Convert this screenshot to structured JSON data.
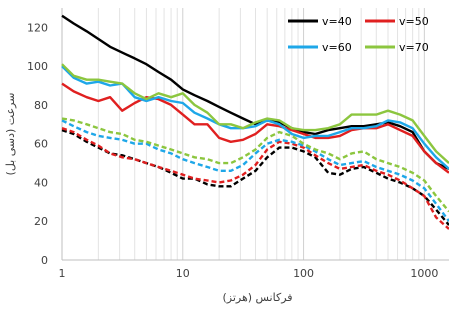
{
  "chart_data": {
    "type": "line",
    "xlabel": "فرکانس (هرتز)",
    "ylabel": "سرعت (دسی بل)",
    "x_scale": "log",
    "xlim": [
      1,
      1600
    ],
    "ylim": [
      0,
      130
    ],
    "x_ticks": [
      1,
      10,
      100,
      1000
    ],
    "x_tick_labels": [
      "1",
      "10",
      "100",
      "1000"
    ],
    "y_ticks": [
      0,
      20,
      40,
      60,
      80,
      100,
      120
    ],
    "y_tick_labels": [
      "0",
      "20",
      "40",
      "60",
      "80",
      "100",
      "120"
    ],
    "grid": "vertical minor lines on log x-axis",
    "legend": {
      "placement": "top-right"
    },
    "series": [
      {
        "name": "v=40",
        "color": "#000000",
        "style": "solid",
        "points": [
          [
            1,
            126
          ],
          [
            1.25,
            122
          ],
          [
            1.6,
            118
          ],
          [
            2,
            114
          ],
          [
            2.5,
            110
          ],
          [
            3.15,
            107
          ],
          [
            4,
            104
          ],
          [
            5,
            101
          ],
          [
            6.3,
            97
          ],
          [
            8,
            93
          ],
          [
            10,
            88
          ],
          [
            12.5,
            85
          ],
          [
            16,
            82
          ],
          [
            20,
            79
          ],
          [
            25,
            76
          ],
          [
            31.5,
            73
          ],
          [
            40,
            70
          ],
          [
            50,
            72
          ],
          [
            63,
            71
          ],
          [
            80,
            68
          ],
          [
            100,
            66
          ],
          [
            125,
            65
          ],
          [
            160,
            67
          ],
          [
            200,
            68
          ],
          [
            250,
            69
          ],
          [
            315,
            69
          ],
          [
            400,
            70
          ],
          [
            500,
            71
          ],
          [
            630,
            69
          ],
          [
            800,
            66
          ],
          [
            1000,
            56
          ],
          [
            1250,
            50
          ],
          [
            1600,
            47
          ]
        ]
      },
      {
        "name": "v=50",
        "color": "#e02020",
        "style": "solid",
        "points": [
          [
            1,
            91
          ],
          [
            1.25,
            87
          ],
          [
            1.6,
            84
          ],
          [
            2,
            82
          ],
          [
            2.5,
            84
          ],
          [
            3.15,
            77
          ],
          [
            4,
            81
          ],
          [
            5,
            84
          ],
          [
            6.3,
            83
          ],
          [
            8,
            80
          ],
          [
            10,
            75
          ],
          [
            12.5,
            70
          ],
          [
            16,
            70
          ],
          [
            20,
            63
          ],
          [
            25,
            61
          ],
          [
            31.5,
            62
          ],
          [
            40,
            65
          ],
          [
            50,
            70
          ],
          [
            63,
            69
          ],
          [
            80,
            67
          ],
          [
            100,
            65
          ],
          [
            125,
            63
          ],
          [
            160,
            63
          ],
          [
            200,
            64
          ],
          [
            250,
            67
          ],
          [
            315,
            68
          ],
          [
            400,
            68
          ],
          [
            500,
            70
          ],
          [
            630,
            67
          ],
          [
            800,
            64
          ],
          [
            1000,
            56
          ],
          [
            1250,
            50
          ],
          [
            1600,
            45
          ]
        ]
      },
      {
        "name": "v=60",
        "color": "#1ea7e8",
        "style": "solid",
        "points": [
          [
            1,
            100
          ],
          [
            1.25,
            94
          ],
          [
            1.6,
            91
          ],
          [
            2,
            92
          ],
          [
            2.5,
            90
          ],
          [
            3.15,
            91
          ],
          [
            4,
            84
          ],
          [
            5,
            82
          ],
          [
            6.3,
            84
          ],
          [
            8,
            82
          ],
          [
            10,
            81
          ],
          [
            12.5,
            76
          ],
          [
            16,
            73
          ],
          [
            20,
            70
          ],
          [
            25,
            68
          ],
          [
            31.5,
            68
          ],
          [
            40,
            69
          ],
          [
            50,
            72
          ],
          [
            63,
            70
          ],
          [
            80,
            65
          ],
          [
            100,
            63
          ],
          [
            125,
            64
          ],
          [
            160,
            64
          ],
          [
            200,
            66
          ],
          [
            250,
            68
          ],
          [
            315,
            68
          ],
          [
            400,
            69
          ],
          [
            500,
            72
          ],
          [
            630,
            71
          ],
          [
            800,
            68
          ],
          [
            1000,
            60
          ],
          [
            1250,
            53
          ],
          [
            1600,
            47
          ]
        ]
      },
      {
        "name": "v=70",
        "color": "#8cc63f",
        "style": "solid",
        "points": [
          [
            1,
            101
          ],
          [
            1.25,
            95
          ],
          [
            1.6,
            93
          ],
          [
            2,
            93
          ],
          [
            2.5,
            92
          ],
          [
            3.15,
            91
          ],
          [
            4,
            86
          ],
          [
            5,
            83
          ],
          [
            6.3,
            86
          ],
          [
            8,
            84
          ],
          [
            10,
            86
          ],
          [
            12.5,
            80
          ],
          [
            16,
            76
          ],
          [
            20,
            70
          ],
          [
            25,
            70
          ],
          [
            31.5,
            68
          ],
          [
            40,
            71
          ],
          [
            50,
            73
          ],
          [
            63,
            72
          ],
          [
            80,
            68
          ],
          [
            100,
            67
          ],
          [
            125,
            67
          ],
          [
            160,
            68
          ],
          [
            200,
            70
          ],
          [
            250,
            75
          ],
          [
            315,
            75
          ],
          [
            400,
            75
          ],
          [
            500,
            77
          ],
          [
            630,
            75
          ],
          [
            800,
            72
          ],
          [
            1000,
            64
          ],
          [
            1250,
            56
          ],
          [
            1600,
            50
          ]
        ]
      },
      {
        "name": "v=40 (dashed)",
        "color": "#000000",
        "style": "dashed",
        "points": [
          [
            1,
            67
          ],
          [
            1.25,
            65
          ],
          [
            1.6,
            61
          ],
          [
            2,
            58
          ],
          [
            2.5,
            55
          ],
          [
            3.15,
            54
          ],
          [
            4,
            52
          ],
          [
            5,
            50
          ],
          [
            6.3,
            48
          ],
          [
            8,
            45
          ],
          [
            10,
            42
          ],
          [
            12.5,
            42
          ],
          [
            16,
            39
          ],
          [
            20,
            38
          ],
          [
            25,
            38
          ],
          [
            31.5,
            42
          ],
          [
            40,
            46
          ],
          [
            50,
            53
          ],
          [
            63,
            58
          ],
          [
            80,
            58
          ],
          [
            100,
            56
          ],
          [
            125,
            53
          ],
          [
            160,
            45
          ],
          [
            200,
            44
          ],
          [
            250,
            47
          ],
          [
            315,
            48
          ],
          [
            400,
            45
          ],
          [
            500,
            42
          ],
          [
            630,
            40
          ],
          [
            800,
            37
          ],
          [
            1000,
            33
          ],
          [
            1250,
            26
          ],
          [
            1600,
            18
          ]
        ]
      },
      {
        "name": "v=50 (dashed)",
        "color": "#e02020",
        "style": "dashed",
        "points": [
          [
            1,
            68
          ],
          [
            1.25,
            66
          ],
          [
            1.6,
            62
          ],
          [
            2,
            59
          ],
          [
            2.5,
            55
          ],
          [
            3.15,
            53
          ],
          [
            4,
            52
          ],
          [
            5,
            50
          ],
          [
            6.3,
            48
          ],
          [
            8,
            46
          ],
          [
            10,
            44
          ],
          [
            12.5,
            42
          ],
          [
            16,
            41
          ],
          [
            20,
            40
          ],
          [
            25,
            41
          ],
          [
            31.5,
            44
          ],
          [
            40,
            49
          ],
          [
            50,
            57
          ],
          [
            63,
            61
          ],
          [
            80,
            60
          ],
          [
            100,
            58
          ],
          [
            125,
            54
          ],
          [
            160,
            50
          ],
          [
            200,
            47
          ],
          [
            250,
            48
          ],
          [
            315,
            49
          ],
          [
            400,
            46
          ],
          [
            500,
            44
          ],
          [
            630,
            41
          ],
          [
            800,
            37
          ],
          [
            1000,
            33
          ],
          [
            1250,
            22
          ],
          [
            1600,
            16
          ]
        ]
      },
      {
        "name": "v=60 (dashed)",
        "color": "#1ea7e8",
        "style": "dashed",
        "points": [
          [
            1,
            72
          ],
          [
            1.25,
            69
          ],
          [
            1.6,
            66
          ],
          [
            2,
            64
          ],
          [
            2.5,
            63
          ],
          [
            3.15,
            62
          ],
          [
            4,
            60
          ],
          [
            5,
            60
          ],
          [
            6.3,
            57
          ],
          [
            8,
            55
          ],
          [
            10,
            52
          ],
          [
            12.5,
            50
          ],
          [
            16,
            48
          ],
          [
            20,
            46
          ],
          [
            25,
            46
          ],
          [
            31.5,
            49
          ],
          [
            40,
            55
          ],
          [
            50,
            60
          ],
          [
            63,
            62
          ],
          [
            80,
            61
          ],
          [
            100,
            59
          ],
          [
            125,
            56
          ],
          [
            160,
            52
          ],
          [
            200,
            49
          ],
          [
            250,
            50
          ],
          [
            315,
            51
          ],
          [
            400,
            48
          ],
          [
            500,
            46
          ],
          [
            630,
            44
          ],
          [
            800,
            41
          ],
          [
            1000,
            37
          ],
          [
            1250,
            29
          ],
          [
            1600,
            20
          ]
        ]
      },
      {
        "name": "v=70 (dashed)",
        "color": "#8cc63f",
        "style": "dashed",
        "points": [
          [
            1,
            73
          ],
          [
            1.25,
            72
          ],
          [
            1.6,
            70
          ],
          [
            2,
            68
          ],
          [
            2.5,
            66
          ],
          [
            3.15,
            65
          ],
          [
            4,
            62
          ],
          [
            5,
            61
          ],
          [
            6.3,
            59
          ],
          [
            8,
            57
          ],
          [
            10,
            55
          ],
          [
            12.5,
            53
          ],
          [
            16,
            52
          ],
          [
            20,
            50
          ],
          [
            25,
            50
          ],
          [
            31.5,
            53
          ],
          [
            40,
            57
          ],
          [
            50,
            63
          ],
          [
            63,
            66
          ],
          [
            80,
            64
          ],
          [
            100,
            60
          ],
          [
            125,
            57
          ],
          [
            160,
            55
          ],
          [
            200,
            52
          ],
          [
            250,
            55
          ],
          [
            315,
            56
          ],
          [
            400,
            52
          ],
          [
            500,
            50
          ],
          [
            630,
            48
          ],
          [
            800,
            45
          ],
          [
            1000,
            41
          ],
          [
            1250,
            33
          ],
          [
            1600,
            25
          ]
        ]
      }
    ]
  }
}
